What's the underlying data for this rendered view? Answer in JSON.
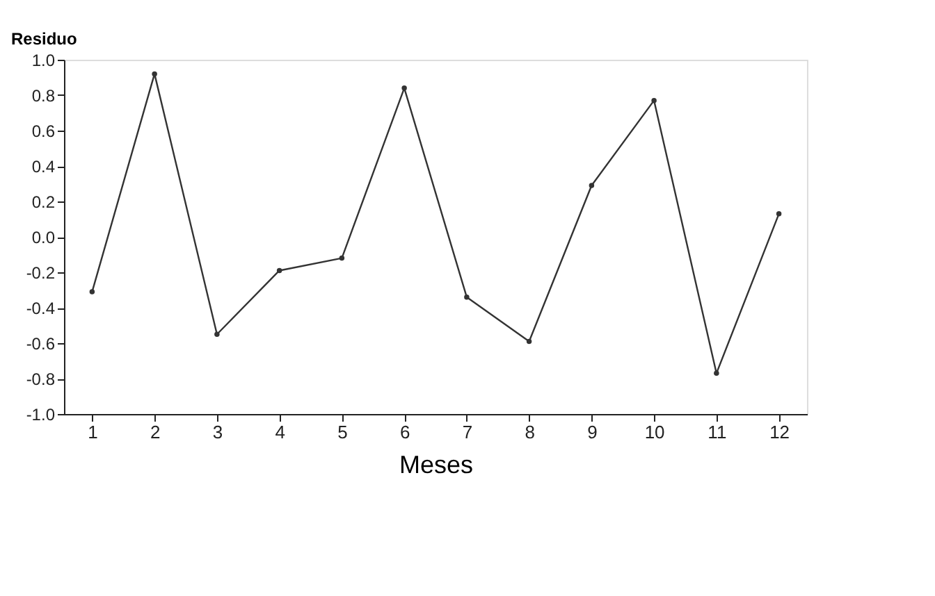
{
  "chart_data": {
    "type": "line",
    "ylabel": "Residuo",
    "xlabel": "Meses",
    "x": [
      1,
      2,
      3,
      4,
      5,
      6,
      7,
      8,
      9,
      10,
      11,
      12
    ],
    "series": [
      {
        "color": "#333333",
        "values": [
          -0.31,
          0.92,
          -0.55,
          -0.19,
          -0.12,
          0.84,
          -0.34,
          -0.59,
          0.29,
          0.77,
          -0.77,
          0.13
        ]
      }
    ],
    "xlim": [
      0.55,
      12.45
    ],
    "xticks": [
      1,
      2,
      3,
      4,
      5,
      6,
      7,
      8,
      9,
      10,
      11,
      12
    ],
    "ylim": [
      -1.0,
      1.0
    ],
    "yticks": [
      {
        "value": -1,
        "label": "-1.0"
      },
      {
        "value": -0.8,
        "label": "-0.8"
      },
      {
        "value": -0.6,
        "label": "-0.6"
      },
      {
        "value": -0.4,
        "label": "-0.4"
      },
      {
        "value": -0.2,
        "label": "-0.2"
      },
      {
        "value": 0,
        "label": "0.0"
      },
      {
        "value": 0.2,
        "label": "0.2"
      },
      {
        "value": 0.4,
        "label": "0.4"
      },
      {
        "value": 0.6,
        "label": "0.6"
      },
      {
        "value": 0.8,
        "label": "0.8"
      },
      {
        "value": 1,
        "label": "1.0"
      }
    ],
    "grid": false,
    "marker": "circle",
    "line_style": "solid"
  }
}
